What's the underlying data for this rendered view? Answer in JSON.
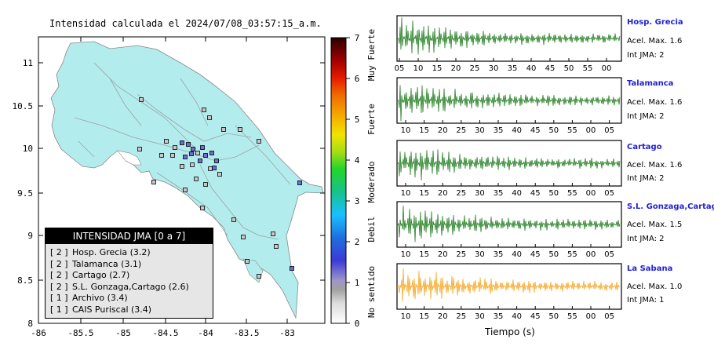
{
  "map": {
    "title": "Intensidad calculada el 2024/07/08_03:57:15_a.m.",
    "x_ticks": [
      "-86",
      "-85.5",
      "-85",
      "-84.5",
      "-84",
      "-83.5",
      "-83"
    ],
    "y_ticks": [
      "11",
      "10.5",
      "10",
      "9.5",
      "9",
      "8.5",
      "8"
    ],
    "colorbar": {
      "ticks": [
        "0",
        "1",
        "2",
        "3",
        "4",
        "5",
        "6",
        "7"
      ],
      "labels": [
        "No sentido",
        "Debil",
        "Moderado",
        "Fuerte",
        "Muy Fuerte"
      ]
    },
    "legend": {
      "header": "INTENSIDAD JMA [0 a 7]",
      "rows": [
        {
          "level": "[ 2 ]",
          "text": "Hosp. Grecia (3.2)"
        },
        {
          "level": "[ 2 ]",
          "text": "Talamanca (3.1)"
        },
        {
          "level": "[ 2 ]",
          "text": "Cartago (2.7)"
        },
        {
          "level": "[ 2 ]",
          "text": "S.L. Gonzaga,Cartago (2.6)"
        },
        {
          "level": "[ 1 ]",
          "text": "Archivo (3.4)"
        },
        {
          "level": "[ 1 ]",
          "text": "CAIS Puriscal (3.4)"
        }
      ]
    }
  },
  "stations": [
    {
      "name": "Hosp. Grecia",
      "acel": "Acel. Max. 1.6",
      "int": "Int JMA: 2",
      "color": "#1e7d1e",
      "ticks": [
        "05",
        "10",
        "15",
        "20",
        "25",
        "30",
        "35",
        "40",
        "45",
        "50",
        "55",
        "00"
      ]
    },
    {
      "name": "Talamanca",
      "acel": "Acel. Max. 1.6",
      "int": "Int JMA: 2",
      "color": "#1e7d1e",
      "ticks": [
        "10",
        "15",
        "20",
        "25",
        "30",
        "35",
        "40",
        "45",
        "50",
        "55",
        "00",
        "05"
      ]
    },
    {
      "name": "Cartago",
      "acel": "Acel. Max. 1.6",
      "int": "Int JMA: 2",
      "color": "#1e7d1e",
      "ticks": [
        "10",
        "15",
        "20",
        "25",
        "30",
        "35",
        "40",
        "45",
        "50",
        "55",
        "00",
        "05"
      ]
    },
    {
      "name": "S.L. Gonzaga,Cartago",
      "acel": "Acel. Max. 1.5",
      "int": "Int JMA: 2",
      "color": "#1e7d1e",
      "ticks": [
        "10",
        "15",
        "20",
        "25",
        "30",
        "35",
        "40",
        "45",
        "50",
        "55",
        "00",
        "05"
      ]
    },
    {
      "name": "La Sabana",
      "acel": "Acel. Max. 1.0",
      "int": "Int JMA: 1",
      "color": "#f5a623",
      "ticks": [
        "10",
        "15",
        "20",
        "25",
        "30",
        "35",
        "40",
        "45",
        "50",
        "55",
        "00",
        "05"
      ]
    }
  ],
  "time_label": "Tiempo (s)"
}
